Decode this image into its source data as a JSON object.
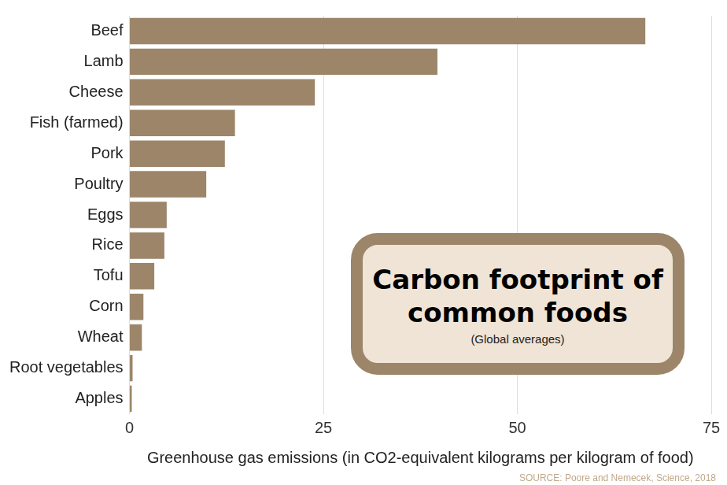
{
  "chart_data": {
    "type": "bar",
    "orientation": "horizontal",
    "title": "Carbon footprint of common foods",
    "subtitle": "(Global averages)",
    "x_label": "Greenhouse gas emissions (in CO2-equivalent kilograms per kilogram of food)",
    "source": "SOURCE: Poore and Nemecek, Science, 2018",
    "categories": [
      "Beef",
      "Lamb",
      "Cheese",
      "Fish (farmed)",
      "Pork",
      "Poultry",
      "Eggs",
      "Rice",
      "Tofu",
      "Corn",
      "Wheat",
      "Root vegetables",
      "Apples"
    ],
    "values": [
      66.5,
      39.7,
      23.9,
      13.6,
      12.3,
      9.9,
      4.8,
      4.5,
      3.2,
      1.8,
      1.6,
      0.4,
      0.3
    ],
    "color": "#9c8569",
    "xlim": [
      0,
      75
    ],
    "xticks": [
      0,
      25,
      50,
      75
    ],
    "grid": true
  }
}
